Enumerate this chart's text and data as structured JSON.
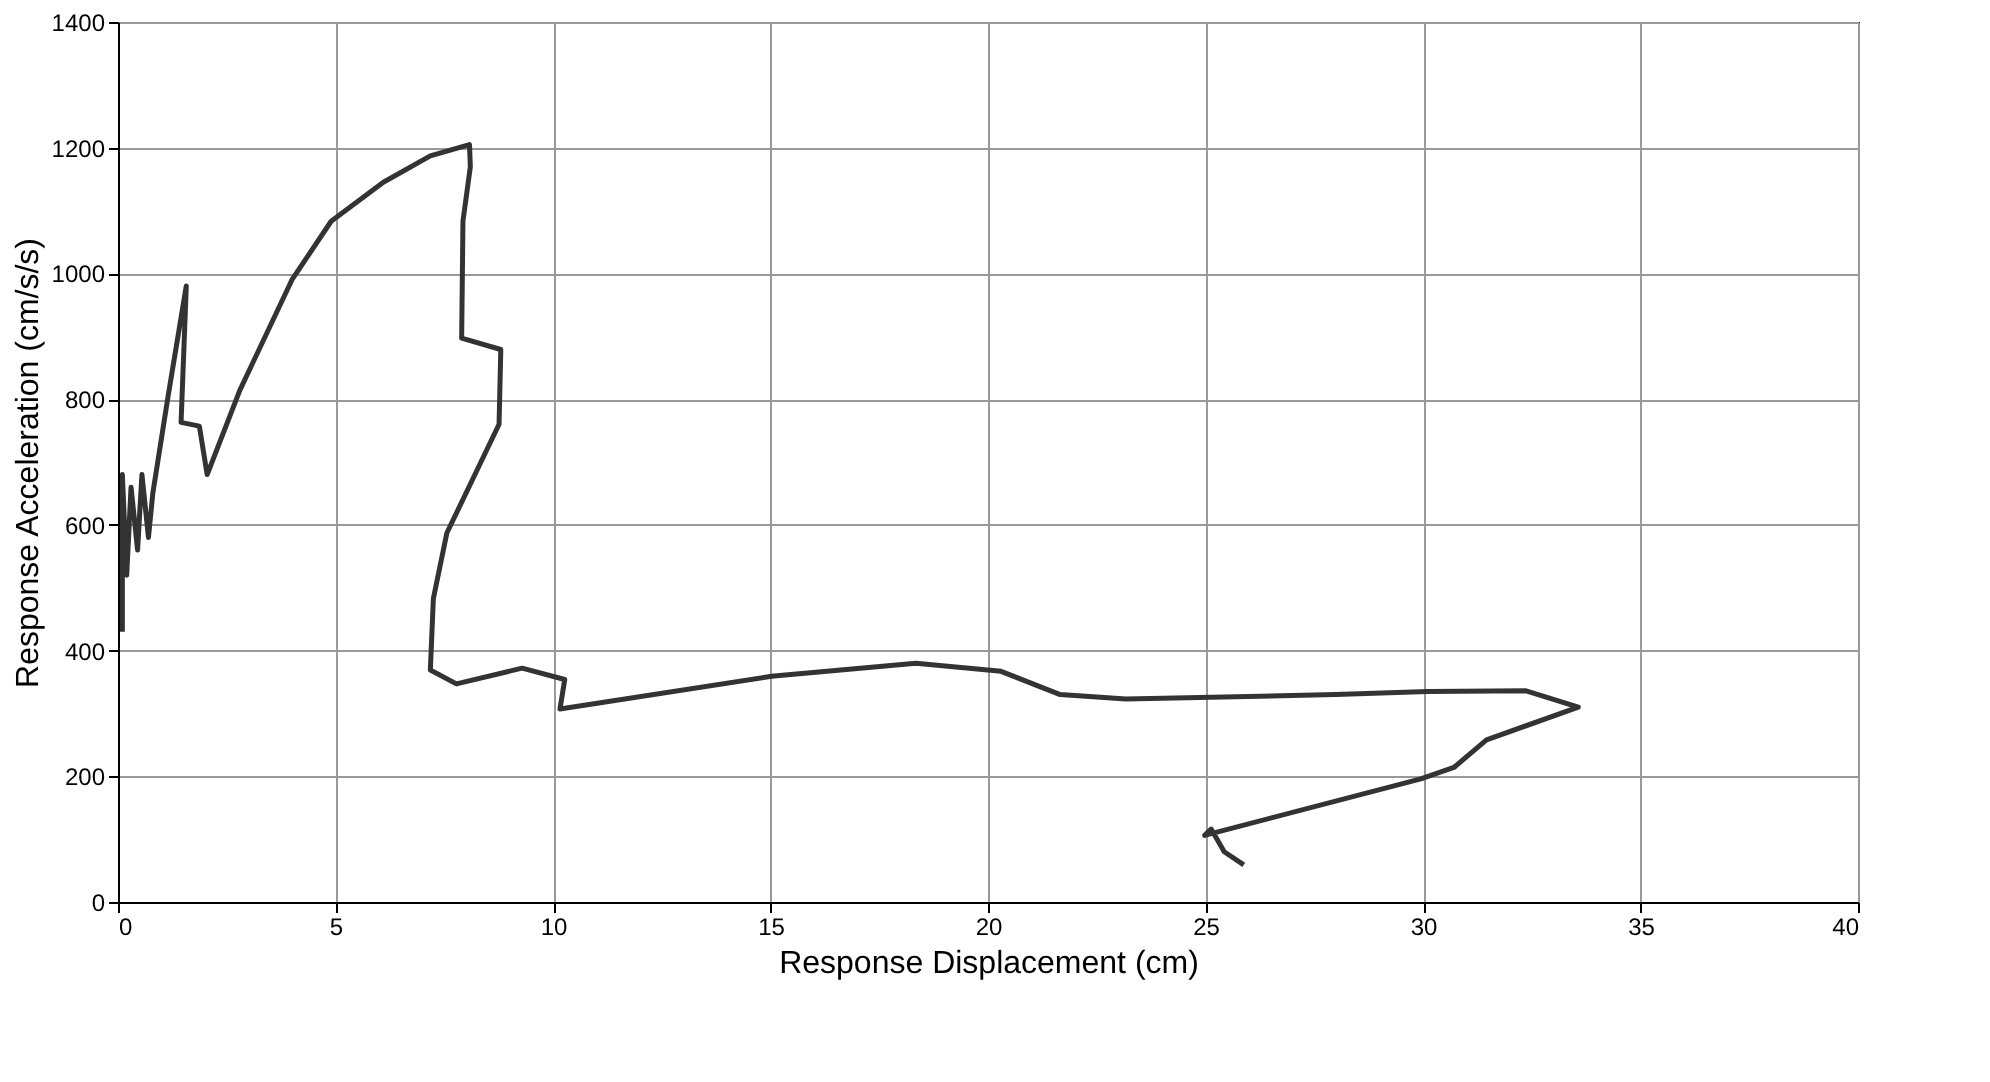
{
  "chart_data": {
    "type": "line",
    "xlabel": "Response Displacement (cm)",
    "ylabel": "Response Acceleration (cm/s/s)",
    "series": [
      {
        "color": "#333333",
        "x": [
          0.1,
          0.1,
          0.2,
          0.3,
          0.45,
          0.55,
          0.7,
          0.8,
          1.15,
          1.57,
          1.45,
          1.87,
          2.05,
          2.8,
          4.0,
          4.9,
          6.1,
          7.18,
          8.08,
          8.1,
          7.93,
          7.9,
          8.8,
          8.76,
          7.56,
          7.25,
          7.18,
          7.78,
          9.29,
          10.27,
          10.16,
          15.02,
          18.34,
          20.3,
          21.66,
          23.17,
          28.0,
          30.1,
          32.37,
          33.57,
          31.46,
          30.71,
          29.95,
          24.98,
          25.13,
          25.43,
          25.88
        ],
        "values": [
          430,
          680,
          520,
          660,
          560,
          680,
          580,
          650,
          804,
          980,
          763,
          757,
          680,
          814,
          990,
          1083,
          1145,
          1187,
          1205,
          1170,
          1083,
          897,
          879,
          760,
          587,
          483,
          369,
          347,
          372,
          354,
          307,
          359,
          380,
          367,
          330,
          323,
          330,
          335,
          336,
          310,
          258,
          214,
          196,
          106,
          116,
          80,
          59
        ]
      }
    ],
    "xlim": [
      0,
      40
    ],
    "xticks": [
      0,
      5,
      10,
      15,
      20,
      25,
      30,
      35,
      40
    ],
    "ylim": [
      0,
      1400
    ],
    "yticks": [
      0,
      200,
      400,
      600,
      800,
      1000,
      1200,
      1400
    ],
    "grid": true,
    "marker": "none",
    "line_style": "solid"
  }
}
